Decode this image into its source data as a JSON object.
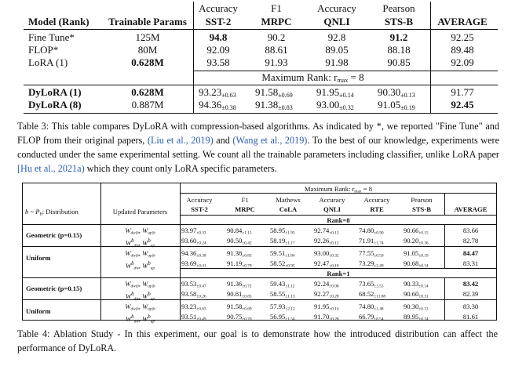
{
  "table3": {
    "metric_row": [
      "Accuracy",
      "F1",
      "Accuracy",
      "Pearson"
    ],
    "headers": [
      "Model (Rank)",
      "Trainable Params",
      "SST-2",
      "MRPC",
      "QNLI",
      "STS-B",
      "AVERAGE"
    ],
    "rows_top": [
      {
        "model": "Fine Tune*",
        "params": "125M",
        "sst2": "94.8",
        "mrpc": "90.2",
        "qnli": "92.8",
        "stsb": "91.2",
        "avg": "92.25"
      },
      {
        "model": "FLOP*",
        "params": "80M",
        "sst2": "92.09",
        "mrpc": "88.61",
        "qnli": "89.05",
        "stsb": "88.18",
        "avg": "89.48"
      },
      {
        "model": "LoRA (1)",
        "params": "0.628M",
        "sst2": "93.58",
        "mrpc": "91.93",
        "qnli": "91.98",
        "stsb": "90.85",
        "avg": "92.09"
      }
    ],
    "max_rank_label": "Maximum Rank: r",
    "max_rank_sub": "max",
    "max_rank_value": " = 8",
    "rows_bottom": [
      {
        "model": "DyLoRA (1)",
        "params": "0.628M",
        "sst2": "93.23",
        "sst2_pm": "±0.63",
        "mrpc": "91.58",
        "mrpc_pm": "±0.69",
        "qnli": "91.95",
        "qnli_pm": "±0.14",
        "stsb": "90.30",
        "stsb_pm": "±0.13",
        "avg": "91.77"
      },
      {
        "model": "DyLoRA (8)",
        "params": "0.887M",
        "sst2": "94.36",
        "sst2_pm": "±0.38",
        "mrpc": "91.38",
        "mrpc_pm": "±0.83",
        "qnli": "93.00",
        "qnli_pm": "±0.32",
        "stsb": "91.05",
        "stsb_pm": "±0.19",
        "avg": "92.45"
      }
    ],
    "caption": {
      "p1": "Table 3: This table compares DyLoRA with compression-based algorithms. As indicated by *, we reported \"Fine Tune\" and FLOP from their original papers, ",
      "link1": "(Liu et al., 2019)",
      "p2": " and ",
      "link2": "(Wang et al., 2019)",
      "p3": ". To the best of our knowledge, experiments were conducted under the same experimental setting. We count all the trainable parameters including classifier, unlike LoRA paper ",
      "link3": "[Hu et al., 2021a)",
      "p4": " which they count only LoRA specific parameters."
    }
  },
  "table4": {
    "max_rank_label": "Maximum Rank: r",
    "max_rank_sub": "max",
    "max_rank_value": " = 8",
    "metric_row": [
      "Accuracy",
      "F1",
      "Mathews",
      "Accuracy",
      "Accuracy",
      "Pearson"
    ],
    "dist_header": "b ~ P",
    "dist_header_sub": "B",
    "dist_header_rest": ": Distribution",
    "updated_header": "Updated Parameters",
    "task_headers": [
      "SST-2",
      "MRPC",
      "CoLA",
      "QNLI",
      "RTE",
      "STS-B",
      "AVERAGE"
    ],
    "rank8_label": "Rank=8",
    "rank1_label": "Rank=1",
    "groups": [
      {
        "dist": "Geometric (p=0.15)",
        "rows": [
          {
            "param": "W_dw|b, W_up|b",
            "vals": [
              [
                "93.97",
                "±0.33"
              ],
              [
                "90.84",
                "±1.15"
              ],
              [
                "58.95",
                "±1.95"
              ],
              [
                "92.74",
                "±0.13"
              ],
              [
                "74.80",
                "±0.90"
              ],
              [
                "90.66",
                "±0.15"
              ]
            ],
            "avg": "83.66",
            "bold": false
          },
          {
            "param": "W_dw^b, W_up^b",
            "vals": [
              [
                "93.60",
                "±0.24"
              ],
              [
                "90.50",
                "±0.42"
              ],
              [
                "58.19",
                "±1.17"
              ],
              [
                "92.26",
                "±0.12"
              ],
              [
                "71.91",
                "±1.74"
              ],
              [
                "90.20",
                "±0.36"
              ]
            ],
            "avg": "82.78",
            "bold": false
          }
        ]
      },
      {
        "dist": "Uniform",
        "rows": [
          {
            "param": "W_dw|b, W_up|b",
            "vals": [
              [
                "94.36",
                "±0.38"
              ],
              [
                "91.38",
                "±0.83"
              ],
              [
                "59.51",
                "±1.84"
              ],
              [
                "93.00",
                "±0.32"
              ],
              [
                "77.55",
                "±0.59"
              ],
              [
                "91.05",
                "±0.19"
              ]
            ],
            "avg": "84.47",
            "bold": true
          },
          {
            "param": "W_dw^b, W_up^b",
            "vals": [
              [
                "93.69",
                "±0.41"
              ],
              [
                "91.19",
                "±0.79"
              ],
              [
                "58.52",
                "±0.95"
              ],
              [
                "92.47",
                "±0.18"
              ],
              [
                "73.29",
                "±2.49"
              ],
              [
                "90.68",
                "±0.14"
              ]
            ],
            "avg": "83.31",
            "bold": false
          }
        ]
      },
      {
        "dist": "Geometric (p=0.15)",
        "rows": [
          {
            "param": "W_dw|b, W_up|b",
            "vals": [
              [
                "93.53",
                "±0.47"
              ],
              [
                "91.36",
                "±0.72"
              ],
              [
                "59.43",
                "±1.12"
              ],
              [
                "92.24",
                "±0.08"
              ],
              [
                "73.65",
                "±3.55"
              ],
              [
                "90.33",
                "±0.14"
              ]
            ],
            "avg": "83.42",
            "bold": true
          },
          {
            "param": "W_dw^b, W_up^b",
            "vals": [
              [
                "93.58",
                "±0.26"
              ],
              [
                "90.81",
                "±0.83"
              ],
              [
                "58.55",
                "±1.13"
              ],
              [
                "92.27",
                "±0.28"
              ],
              [
                "68.52",
                "±11.88"
              ],
              [
                "90.60",
                "±0.31"
              ]
            ],
            "avg": "82.39",
            "bold": false
          }
        ]
      },
      {
        "dist": "Uniform",
        "rows": [
          {
            "param": "W_dw|b, W_up|b",
            "vals": [
              [
                "93.23",
                "±0.63"
              ],
              [
                "91.58",
                "±0.69"
              ],
              [
                "57.93",
                "±2.12"
              ],
              [
                "91.95",
                "±0.14"
              ],
              [
                "74.80",
                "±1.48"
              ],
              [
                "90.30",
                "±0.13"
              ]
            ],
            "avg": "83.30",
            "bold": false
          },
          {
            "param": "W_dw^b, W_up^b",
            "vals": [
              [
                "93.51",
                "±0.49"
              ],
              [
                "90.75",
                "±0.70"
              ],
              [
                "56.95",
                "±1.54"
              ],
              [
                "91.70",
                "±0.28"
              ],
              [
                "66.79",
                "±8.54"
              ],
              [
                "89.95",
                "±0.24"
              ]
            ],
            "avg": "81.61",
            "bold": false
          }
        ]
      }
    ],
    "caption": "Table 4: Ablation Study - In this experiment, our goal is to demonstrate how the introduced distribution can affect the performance of DyLoRA."
  }
}
